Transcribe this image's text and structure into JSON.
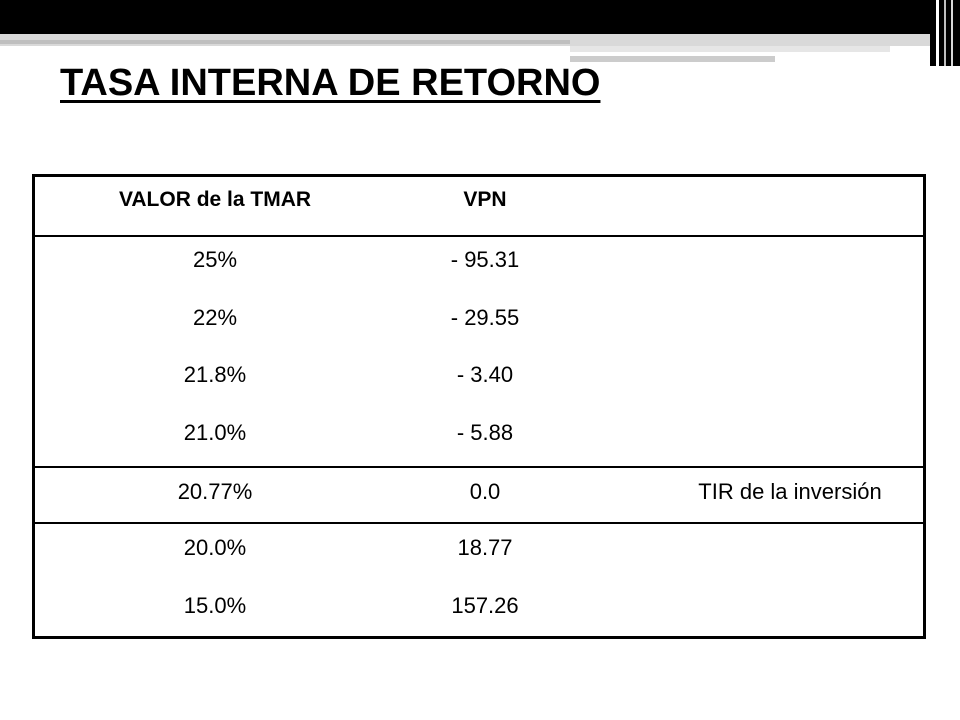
{
  "slide": {
    "title": "TASA INTERNA DE RETORNO"
  },
  "table": {
    "headers": {
      "tmar": "VALOR de la TMAR",
      "vpn": "VPN",
      "note": ""
    },
    "rows": [
      {
        "tmar": "25%",
        "vpn": "- 95.31",
        "note": ""
      },
      {
        "tmar": "22%",
        "vpn": "- 29.55",
        "note": ""
      },
      {
        "tmar": "21.8%",
        "vpn": "- 3.40",
        "note": ""
      },
      {
        "tmar": "21.0%",
        "vpn": "- 5.88",
        "note": ""
      },
      {
        "tmar": "20.77%",
        "vpn": "0.0",
        "note": "TIR de la inversión"
      },
      {
        "tmar": "20.0%",
        "vpn": "18.77",
        "note": ""
      },
      {
        "tmar": "15.0%",
        "vpn": "157.26",
        "note": ""
      }
    ]
  },
  "colors": {
    "text": "#000000",
    "background": "#ffffff",
    "bar": "#000000",
    "bar_accent": "#d9d9d9"
  }
}
